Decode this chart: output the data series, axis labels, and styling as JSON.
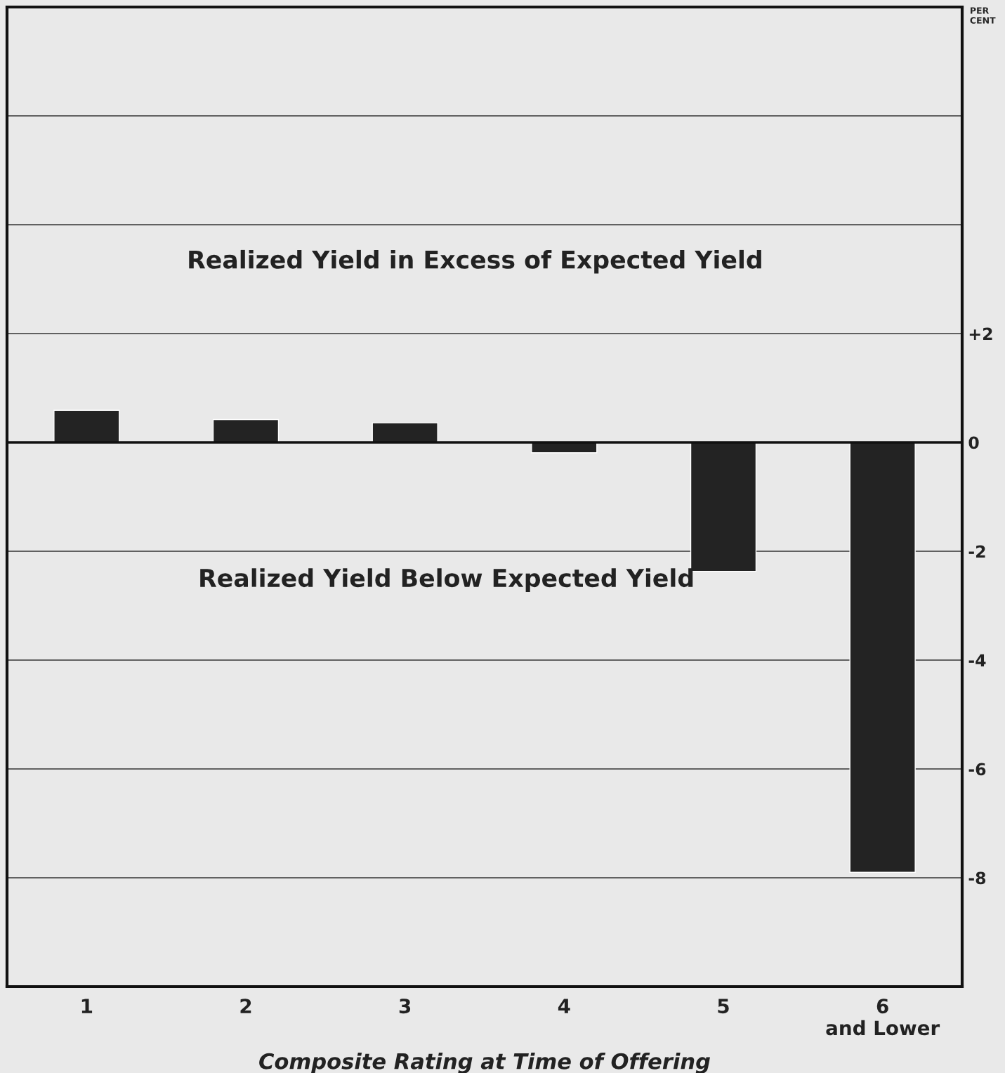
{
  "chart_data": {
    "type": "bar",
    "ylabel": "PER\nCENT",
    "xlabel": "Composite Rating at Time of Offering",
    "categories": [
      "1",
      "2",
      "3",
      "4",
      "5",
      "6\nand Lower"
    ],
    "values": [
      0.59,
      0.42,
      0.36,
      -0.19,
      -2.37,
      -7.9
    ],
    "color": "#232323",
    "ylim": [
      -10,
      8
    ],
    "yticks": [
      {
        "value": 6,
        "label": null
      },
      {
        "value": 4,
        "label": null
      },
      {
        "value": 2,
        "label": "+2"
      },
      0,
      -2,
      -4,
      -6,
      -8
    ],
    "grid": "y",
    "annotations": [
      "Realized Yield in Excess of Expected Yield",
      "Realized Yield Below Expected Yield"
    ]
  }
}
